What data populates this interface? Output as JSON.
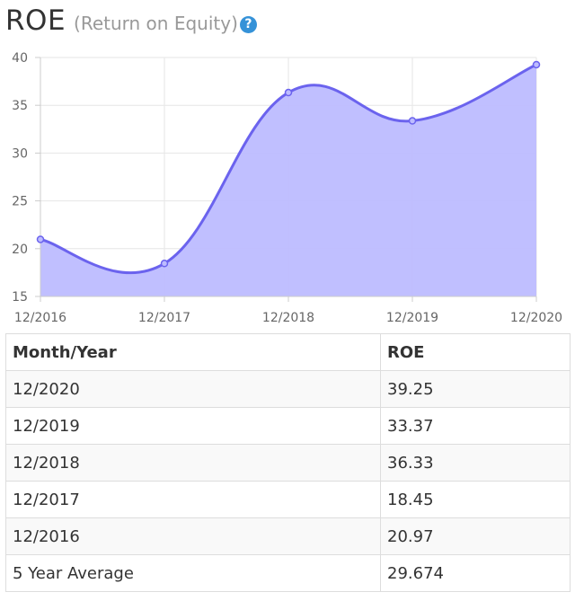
{
  "header": {
    "title": "ROE",
    "subtitle": "(Return on Equity)",
    "help_glyph": "?",
    "help_icon": "question-circle-icon"
  },
  "colors": {
    "line": "#6b63ee",
    "fill": "#bdbcff",
    "grid": "#e6e6e6",
    "help_icon": "#3592d8"
  },
  "chart_data": {
    "type": "area",
    "x": [
      "12/2016",
      "12/2017",
      "12/2018",
      "12/2019",
      "12/2020"
    ],
    "series": [
      {
        "values": [
          20.97,
          18.45,
          36.33,
          33.37,
          39.25
        ]
      }
    ],
    "ylim": [
      15,
      40
    ],
    "yticks": [
      15,
      20,
      25,
      30,
      35,
      40
    ],
    "grid": true,
    "legend": "none"
  },
  "table": {
    "headers": [
      "Month/Year",
      "ROE"
    ],
    "rows": [
      [
        "12/2020",
        "39.25"
      ],
      [
        "12/2019",
        "33.37"
      ],
      [
        "12/2018",
        "36.33"
      ],
      [
        "12/2017",
        "18.45"
      ],
      [
        "12/2016",
        "20.97"
      ],
      [
        "5 Year Average",
        "29.674"
      ]
    ]
  }
}
